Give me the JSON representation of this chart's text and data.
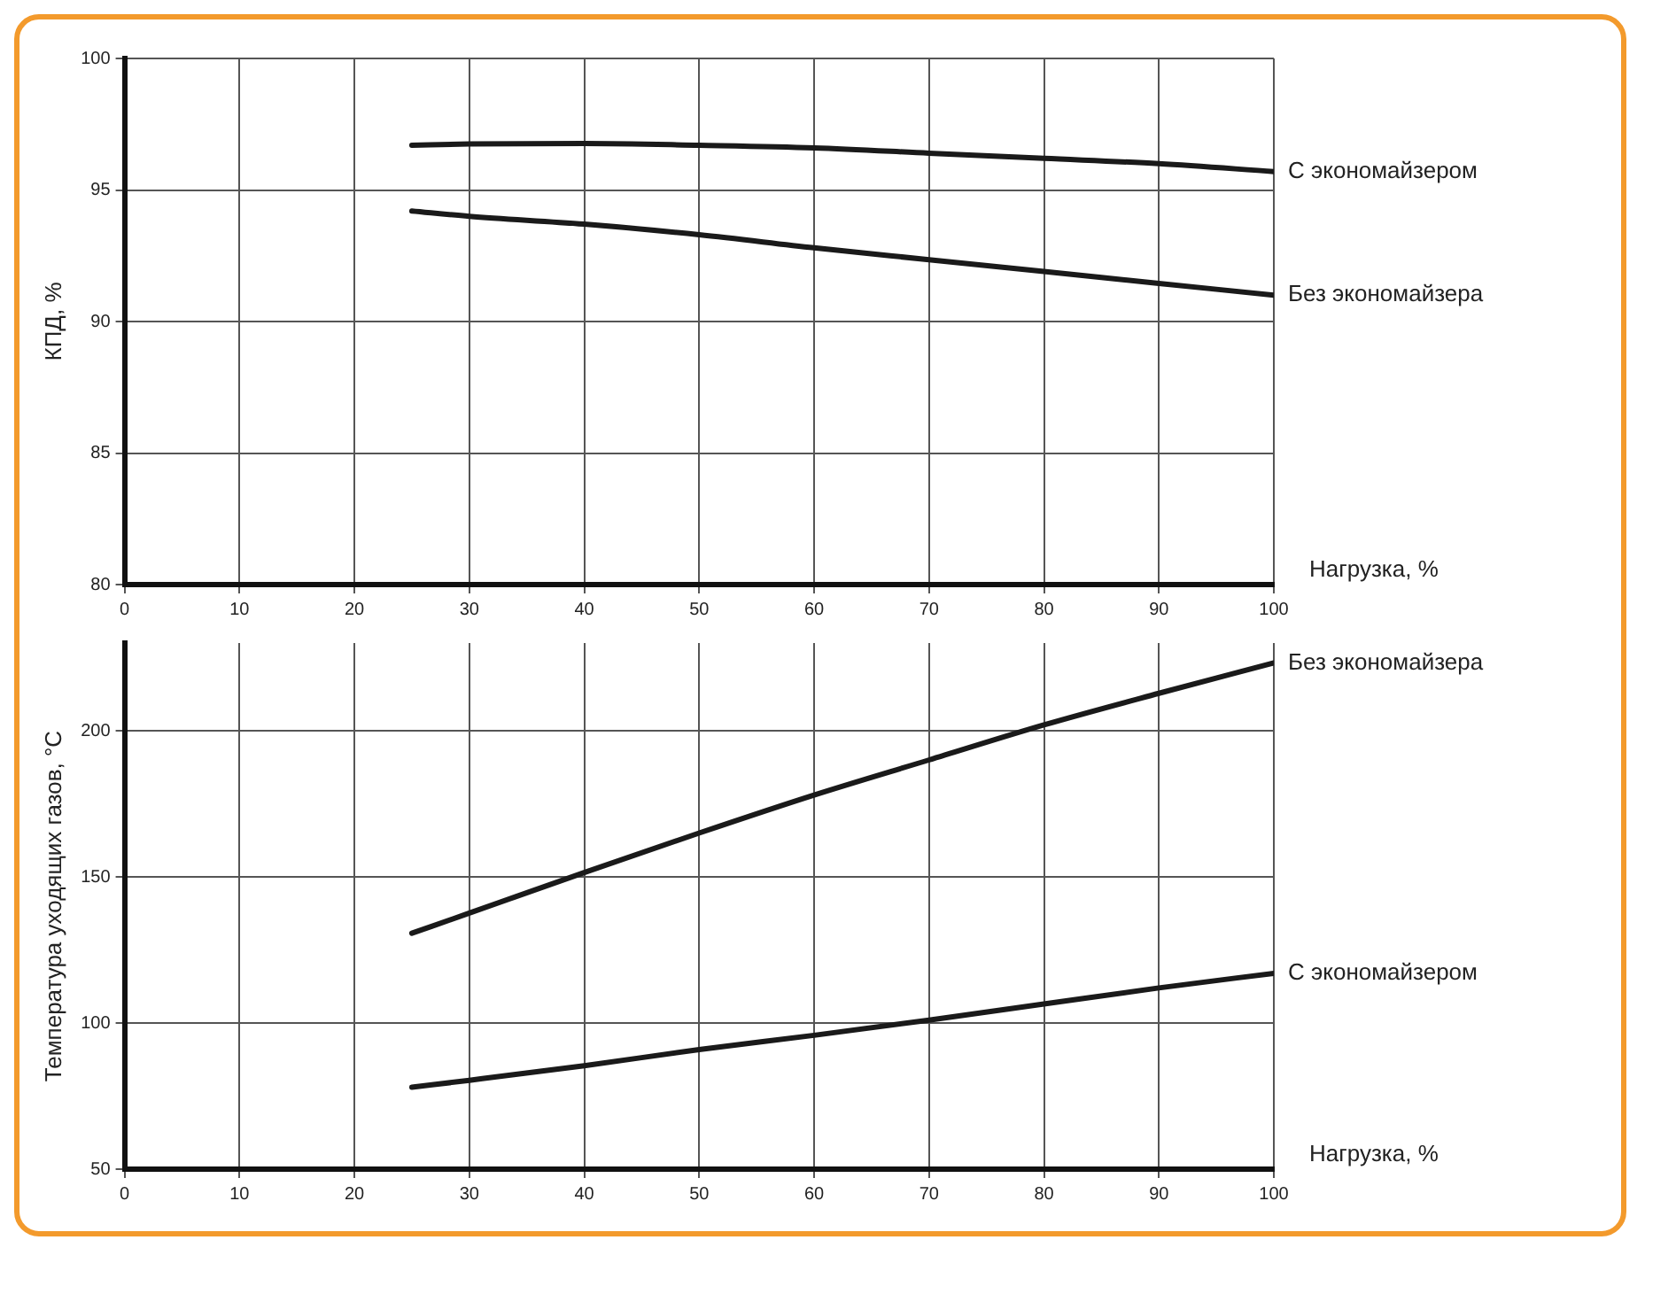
{
  "chart_data": [
    {
      "type": "line",
      "xlabel": "Нагрузка, %",
      "ylabel": "КПД, %",
      "xlim": [
        0,
        100
      ],
      "xticks": [
        0,
        10,
        20,
        30,
        40,
        50,
        60,
        70,
        80,
        90,
        100
      ],
      "ylim": [
        80,
        100
      ],
      "yticks": [
        80,
        85,
        90,
        95,
        100
      ],
      "grid": true,
      "legend": false,
      "series": [
        {
          "name": "С экономайзером",
          "color": "#1a1a1a",
          "x": [
            25,
            30,
            40,
            50,
            60,
            70,
            80,
            90,
            100
          ],
          "values": [
            96.7,
            96.75,
            96.77,
            96.7,
            96.6,
            96.4,
            96.2,
            96.0,
            95.7
          ]
        },
        {
          "name": "Без экономайзера",
          "color": "#1a1a1a",
          "x": [
            25,
            30,
            40,
            50,
            60,
            70,
            80,
            90,
            100
          ],
          "values": [
            94.2,
            94.0,
            93.7,
            93.3,
            92.8,
            92.35,
            91.9,
            91.45,
            91.0
          ]
        }
      ]
    },
    {
      "type": "line",
      "xlabel": "Нагрузка, %",
      "ylabel": "Температура уходящих газов, °С",
      "xlim": [
        0,
        100
      ],
      "xticks": [
        0,
        10,
        20,
        30,
        40,
        50,
        60,
        70,
        80,
        90,
        100
      ],
      "ylim": [
        50,
        230
      ],
      "yticks": [
        50,
        100,
        150,
        200
      ],
      "grid": true,
      "legend": false,
      "series": [
        {
          "name": "Без экономайзера",
          "color": "#1a1a1a",
          "x": [
            25,
            30,
            40,
            50,
            60,
            70,
            80,
            90,
            100
          ],
          "values": [
            130.7,
            137.6,
            151.5,
            165,
            178,
            190,
            202,
            212.8,
            223.2
          ]
        },
        {
          "name": "С экономайзером",
          "color": "#1a1a1a",
          "x": [
            25,
            30,
            40,
            50,
            60,
            70,
            80,
            90,
            100
          ],
          "values": [
            78,
            80.4,
            85.4,
            90.9,
            95.8,
            101,
            106.5,
            112,
            117
          ]
        }
      ]
    }
  ]
}
